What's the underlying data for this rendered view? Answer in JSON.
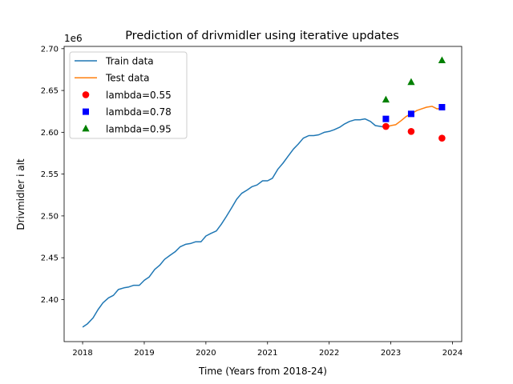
{
  "chart_data": {
    "type": "line",
    "title": "Prediction of drivmidler using iterative updates",
    "xlabel": "Time (Years from 2018-24)",
    "ylabel": "Drivmidler i alt",
    "y_offset_label": "1e6",
    "xlim": [
      2017.7,
      2024.15
    ],
    "ylim": [
      2.3497,
      2.7027
    ],
    "xticks": [
      2018,
      2019,
      2020,
      2021,
      2022,
      2023,
      2024
    ],
    "xtick_labels": [
      "2018",
      "2019",
      "2020",
      "2021",
      "2022",
      "2023",
      "2024"
    ],
    "yticks": [
      2.4,
      2.45,
      2.5,
      2.55,
      2.6,
      2.65,
      2.7
    ],
    "ytick_labels": [
      "2.40",
      "2.45",
      "2.50",
      "2.55",
      "2.60",
      "2.65",
      "2.70"
    ],
    "grid": false,
    "legend_position": "upper-left",
    "series": [
      {
        "name": "Train data",
        "kind": "line",
        "color": "#1f77b4",
        "x": [
          2018.0,
          2018.08,
          2018.17,
          2018.25,
          2018.33,
          2018.42,
          2018.5,
          2018.58,
          2018.67,
          2018.75,
          2018.83,
          2018.92,
          2019.0,
          2019.08,
          2019.17,
          2019.25,
          2019.33,
          2019.42,
          2019.5,
          2019.58,
          2019.67,
          2019.75,
          2019.83,
          2019.92,
          2020.0,
          2020.08,
          2020.17,
          2020.25,
          2020.33,
          2020.42,
          2020.5,
          2020.58,
          2020.67,
          2020.75,
          2020.83,
          2020.92,
          2021.0,
          2021.08,
          2021.17,
          2021.25,
          2021.33,
          2021.42,
          2021.5,
          2021.58,
          2021.67,
          2021.75,
          2021.83,
          2021.92,
          2022.0,
          2022.08,
          2022.17,
          2022.25,
          2022.33,
          2022.42,
          2022.5,
          2022.58,
          2022.67,
          2022.75,
          2022.83,
          2022.92
        ],
        "y": [
          2.367,
          2.371,
          2.378,
          2.388,
          2.396,
          2.402,
          2.405,
          2.412,
          2.414,
          2.415,
          2.417,
          2.417,
          2.423,
          2.427,
          2.436,
          2.441,
          2.448,
          2.453,
          2.457,
          2.463,
          2.466,
          2.467,
          2.469,
          2.469,
          2.476,
          2.479,
          2.482,
          2.49,
          2.499,
          2.51,
          2.52,
          2.527,
          2.531,
          2.535,
          2.537,
          2.542,
          2.542,
          2.545,
          2.556,
          2.563,
          2.571,
          2.58,
          2.586,
          2.593,
          2.596,
          2.596,
          2.597,
          2.6,
          2.601,
          2.603,
          2.606,
          2.61,
          2.613,
          2.615,
          2.615,
          2.616,
          2.613,
          2.608,
          2.607,
          2.606
        ]
      },
      {
        "name": "Test data",
        "kind": "line",
        "color": "#ff7f0e",
        "x": [
          2022.92,
          2023.0,
          2023.08,
          2023.17,
          2023.25,
          2023.33,
          2023.42,
          2023.5,
          2023.58,
          2023.67,
          2023.75,
          2023.83
        ],
        "y": [
          2.606,
          2.608,
          2.609,
          2.614,
          2.619,
          2.622,
          2.626,
          2.628,
          2.63,
          2.631,
          2.628,
          2.629
        ]
      },
      {
        "name": "lambda=0.55",
        "kind": "scatter",
        "marker": "circle",
        "color": "#ff0000",
        "x": [
          2022.92,
          2023.33,
          2023.83
        ],
        "y": [
          2.607,
          2.601,
          2.593
        ]
      },
      {
        "name": "lambda=0.78",
        "kind": "scatter",
        "marker": "square",
        "color": "#0000ff",
        "x": [
          2022.92,
          2023.33,
          2023.83
        ],
        "y": [
          2.616,
          2.622,
          2.63
        ]
      },
      {
        "name": "lambda=0.95",
        "kind": "scatter",
        "marker": "triangle",
        "color": "#008000",
        "x": [
          2022.92,
          2023.33,
          2023.83
        ],
        "y": [
          2.639,
          2.66,
          2.686
        ]
      }
    ]
  }
}
